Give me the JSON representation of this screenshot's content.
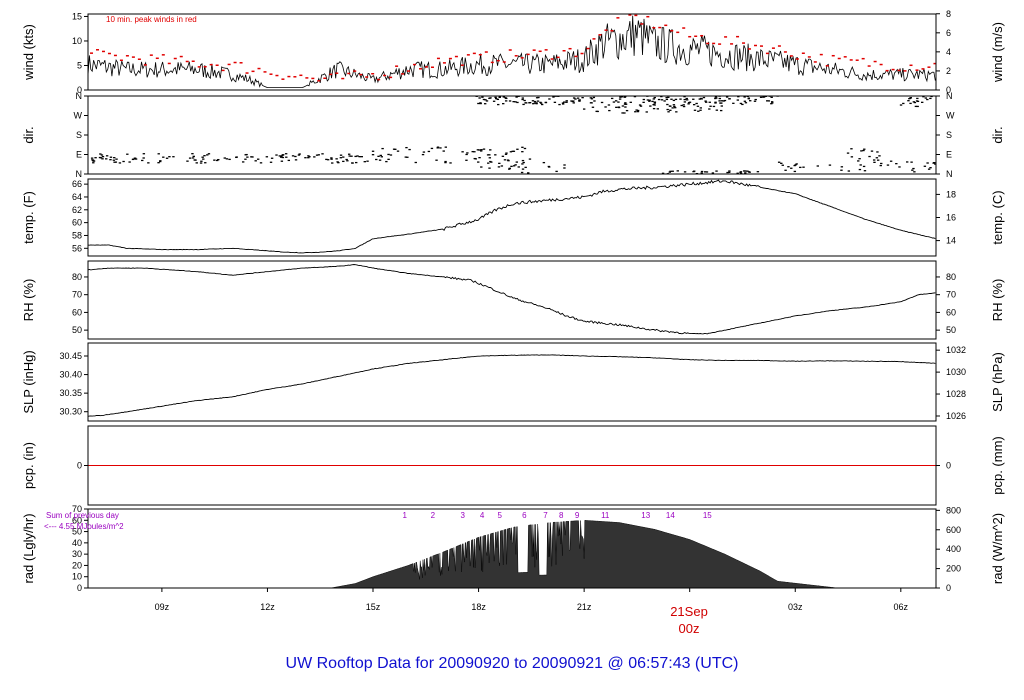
{
  "title": "UW Rooftop Data for 20090920  to  20090921 @ 06:57:43  (UTC)",
  "wind_note": "10 min. peak winds in red",
  "date_marker": {
    "line1": "21Sep",
    "line2": "00z"
  },
  "colors": {
    "title": "#1010d0",
    "peak": "#e00000",
    "rad_notes": "#9a00c0",
    "date": "#d00000",
    "pcp_line": "#e00000"
  },
  "chart_data": {
    "type": "line",
    "x_range_hours": [
      6.9,
      31.0
    ],
    "x_ticks": [
      {
        "h": 9,
        "label": "09z"
      },
      {
        "h": 12,
        "label": "12z"
      },
      {
        "h": 15,
        "label": "15z"
      },
      {
        "h": 18,
        "label": "18z"
      },
      {
        "h": 21,
        "label": "21z"
      },
      {
        "h": 27,
        "label": "03z"
      },
      {
        "h": 30,
        "label": "06z"
      }
    ],
    "panels": [
      {
        "id": "wind",
        "left_label": "wind (kts)",
        "right_label": "wind (m/s)",
        "ylim": [
          0,
          15.5
        ],
        "left_ticks": [
          0,
          5,
          10,
          15
        ],
        "right_ticks": [
          {
            "v": 0,
            "label": "0"
          },
          {
            "v": 3.89,
            "label": "2"
          },
          {
            "v": 7.78,
            "label": "4"
          },
          {
            "v": 11.66,
            "label": "6"
          },
          {
            "v": 15.55,
            "label": "8"
          }
        ],
        "series": [
          {
            "x": [
              6.9,
              8,
              9,
              10,
              11,
              11.5,
              12,
              13,
              14,
              14.5,
              15,
              16,
              17,
              18,
              19,
              20,
              21,
              21.5,
              22,
              22.5,
              23,
              24,
              25,
              26,
              27,
              28,
              29,
              30,
              31
            ],
            "y": [
              5,
              4,
              4,
              4,
              3,
              2,
              0.5,
              0.5,
              4,
              3,
              2,
              4,
              4,
              5,
              5,
              5,
              6,
              9,
              10,
              11,
              9,
              8,
              7,
              6,
              5,
              4,
              3,
              3,
              3
            ]
          }
        ],
        "peaks": {
          "x": [
            7.5,
            9,
            11,
            13.5,
            15,
            17,
            19,
            21,
            21.8,
            22.3,
            22.8,
            24,
            26,
            28,
            30
          ],
          "y": [
            7,
            6,
            5,
            2,
            3,
            6,
            7,
            8,
            13,
            15,
            14,
            11,
            9,
            6,
            5
          ]
        }
      },
      {
        "id": "dir",
        "left_label": "dir.",
        "right_label": "dir.",
        "ylim": [
          0,
          360
        ],
        "left_ticks": [
          {
            "v": 0,
            "label": "N"
          },
          {
            "v": 90,
            "label": "E"
          },
          {
            "v": 180,
            "label": "S"
          },
          {
            "v": 270,
            "label": "W"
          },
          {
            "v": 360,
            "label": "N"
          }
        ],
        "right_ticks": [
          {
            "v": 0,
            "label": "N"
          },
          {
            "v": 90,
            "label": "E"
          },
          {
            "v": 180,
            "label": "S"
          },
          {
            "v": 270,
            "label": "W"
          },
          {
            "v": 360,
            "label": "N"
          }
        ],
        "scatter": [
          {
            "x0": 7.0,
            "x1": 15.0,
            "ymin": 50,
            "ymax": 95,
            "n": 130
          },
          {
            "x0": 15.0,
            "x1": 19.5,
            "ymin": 50,
            "ymax": 125,
            "n": 70
          },
          {
            "x0": 18.0,
            "x1": 20.5,
            "ymin": 5,
            "ymax": 60,
            "n": 25
          },
          {
            "x0": 17.9,
            "x1": 26.5,
            "ymin": 320,
            "ymax": 360,
            "n": 180
          },
          {
            "x0": 21.0,
            "x1": 25.0,
            "ymin": 280,
            "ymax": 320,
            "n": 50
          },
          {
            "x0": 23.0,
            "x1": 26.0,
            "ymin": 0,
            "ymax": 15,
            "n": 30
          },
          {
            "x0": 26.5,
            "x1": 31.0,
            "ymin": 10,
            "ymax": 60,
            "n": 40
          },
          {
            "x0": 28.5,
            "x1": 29.5,
            "ymin": 60,
            "ymax": 120,
            "n": 15
          },
          {
            "x0": 30.0,
            "x1": 31.0,
            "ymin": 310,
            "ymax": 360,
            "n": 20
          }
        ]
      },
      {
        "id": "temp",
        "left_label": "temp. (F)",
        "right_label": "temp. (C)",
        "ylim": [
          54.8,
          66.8
        ],
        "left_ticks": [
          56,
          58,
          60,
          62,
          64,
          66
        ],
        "right_ticks": [
          {
            "v": 57.2,
            "label": "14"
          },
          {
            "v": 60.8,
            "label": "16"
          },
          {
            "v": 64.4,
            "label": "18"
          }
        ],
        "series": [
          {
            "x": [
              6.9,
              7.5,
              8,
              9,
              10,
              11,
              12,
              12.5,
              13,
              13.5,
              14,
              14.5,
              15,
              16,
              17,
              18,
              18.5,
              19,
              20,
              21,
              21.5,
              22,
              23,
              24,
              25,
              25.5,
              26,
              27,
              28,
              29,
              30,
              31
            ],
            "y": [
              56.5,
              56.5,
              56,
              55.8,
              55.8,
              56,
              55.6,
              55.4,
              55.3,
              55.4,
              55.6,
              56,
              57.5,
              58.2,
              59,
              60.5,
              62,
              63,
              63.5,
              64,
              64.8,
              65.2,
              65.5,
              66,
              66.5,
              66,
              65.5,
              64.5,
              62.5,
              60.5,
              58.8,
              57.5
            ]
          }
        ]
      },
      {
        "id": "rh",
        "left_label": "RH (%)",
        "right_label": "RH (%)",
        "ylim": [
          45,
          89
        ],
        "left_ticks": [
          50,
          60,
          70,
          80
        ],
        "right_ticks": [
          {
            "v": 50,
            "label": "50"
          },
          {
            "v": 60,
            "label": "60"
          },
          {
            "v": 70,
            "label": "70"
          },
          {
            "v": 80,
            "label": "80"
          }
        ],
        "series": [
          {
            "x": [
              6.9,
              7.5,
              8.5,
              10,
              11,
              12,
              13,
              14,
              14.5,
              15,
              16,
              17,
              17.8,
              18.3,
              19,
              20,
              20.5,
              21,
              22,
              23,
              24,
              24.5,
              25,
              26,
              27,
              28,
              29,
              30,
              30.5,
              31
            ],
            "y": [
              84,
              85,
              85,
              83,
              81,
              83,
              85,
              86,
              87,
              85,
              82,
              80,
              78,
              74,
              68,
              62,
              58,
              55,
              53,
              50,
              48,
              48,
              50,
              54,
              58,
              61,
              63,
              66,
              70,
              71
            ]
          }
        ]
      },
      {
        "id": "slp",
        "left_label": "SLP (inHg)",
        "right_label": "SLP (hPa)",
        "ylim": [
          30.275,
          30.485
        ],
        "left_ticks": [
          30.3,
          30.35,
          30.4,
          30.45
        ],
        "right_ticks": [
          {
            "v": 30.2885,
            "label": "1026"
          },
          {
            "v": 30.3476,
            "label": "1028"
          },
          {
            "v": 30.4066,
            "label": "1030"
          },
          {
            "v": 30.4657,
            "label": "1032"
          }
        ],
        "series": [
          {
            "x": [
              6.9,
              7.3,
              8,
              9,
              10,
              11,
              12,
              13,
              14,
              15,
              16,
              17,
              18,
              19,
              20,
              21,
              22,
              23,
              24,
              25,
              26,
              27,
              28,
              29,
              30,
              31
            ],
            "y": [
              30.288,
              30.29,
              30.3,
              30.315,
              30.33,
              30.34,
              30.36,
              30.375,
              30.395,
              30.415,
              30.43,
              30.44,
              30.45,
              30.452,
              30.453,
              30.45,
              30.448,
              30.445,
              30.44,
              30.438,
              30.438,
              30.436,
              30.437,
              30.436,
              30.435,
              30.43
            ]
          }
        ]
      },
      {
        "id": "pcp",
        "left_label": "pcp. (in)",
        "right_label": "pcp. (mm)",
        "ylim": [
          -1,
          1
        ],
        "left_ticks": [
          0
        ],
        "right_ticks": [
          {
            "v": 0,
            "label": "0"
          }
        ],
        "series": [
          {
            "x": [
              6.9,
              31.0
            ],
            "y": [
              0,
              0
            ]
          }
        ]
      },
      {
        "id": "rad",
        "left_label": "rad (Lgly/hr)",
        "right_label": "rad (W/m^2)",
        "ylim": [
          0,
          70
        ],
        "left_ticks": [
          0,
          10,
          20,
          30,
          40,
          50,
          60,
          70
        ],
        "right_ticks": [
          {
            "v": 0,
            "label": "0"
          },
          {
            "v": 17.2,
            "label": "200"
          },
          {
            "v": 34.4,
            "label": "400"
          },
          {
            "v": 51.6,
            "label": "600"
          },
          {
            "v": 68.8,
            "label": "800"
          }
        ],
        "series": [
          {
            "x": [
              13.8,
              14.5,
              15,
              16,
              17,
              18,
              19,
              20,
              21,
              22,
              23,
              24,
              25,
              26,
              26.5,
              28.2
            ],
            "y": [
              0,
              4,
              10,
              20,
              32,
              45,
              54,
              58,
              60,
              58,
              52,
              43,
              30,
              15,
              6,
              0
            ]
          }
        ],
        "notes": [
          "Sum of previous day",
          "<--- 4.55 MJoules/m^2"
        ],
        "hour_labels": [
          {
            "h": 15.9,
            "label": "1"
          },
          {
            "h": 16.7,
            "label": "2"
          },
          {
            "h": 17.55,
            "label": "3"
          },
          {
            "h": 18.1,
            "label": "4"
          },
          {
            "h": 18.6,
            "label": "5"
          },
          {
            "h": 19.3,
            "label": "6"
          },
          {
            "h": 19.9,
            "label": "7"
          },
          {
            "h": 20.35,
            "label": "8"
          },
          {
            "h": 20.8,
            "label": "9"
          },
          {
            "h": 21.6,
            "label": "11"
          },
          {
            "h": 22.75,
            "label": "13"
          },
          {
            "h": 23.45,
            "label": "14"
          },
          {
            "h": 24.5,
            "label": "15"
          }
        ]
      }
    ]
  }
}
